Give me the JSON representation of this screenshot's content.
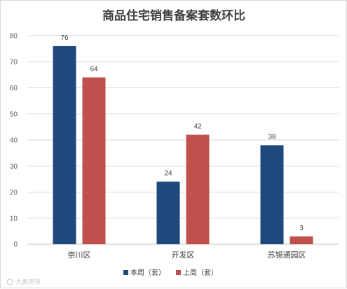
{
  "chart_data": {
    "type": "bar",
    "title": "商品住宅销售备案套数环比",
    "categories": [
      "崇川区",
      "开发区",
      "苏锡通园区"
    ],
    "series": [
      {
        "name": "本周（套）",
        "values": [
          76,
          24,
          38
        ],
        "color": "#1f497d"
      },
      {
        "name": "上周（套）",
        "values": [
          64,
          42,
          3
        ],
        "color": "#c0504d"
      }
    ],
    "ylim": [
      0,
      80
    ],
    "yticks": [
      0,
      10,
      20,
      30,
      40,
      50,
      60,
      70,
      80
    ],
    "grid": true,
    "legend_position": "bottom"
  },
  "watermark": "大鹏房讯"
}
